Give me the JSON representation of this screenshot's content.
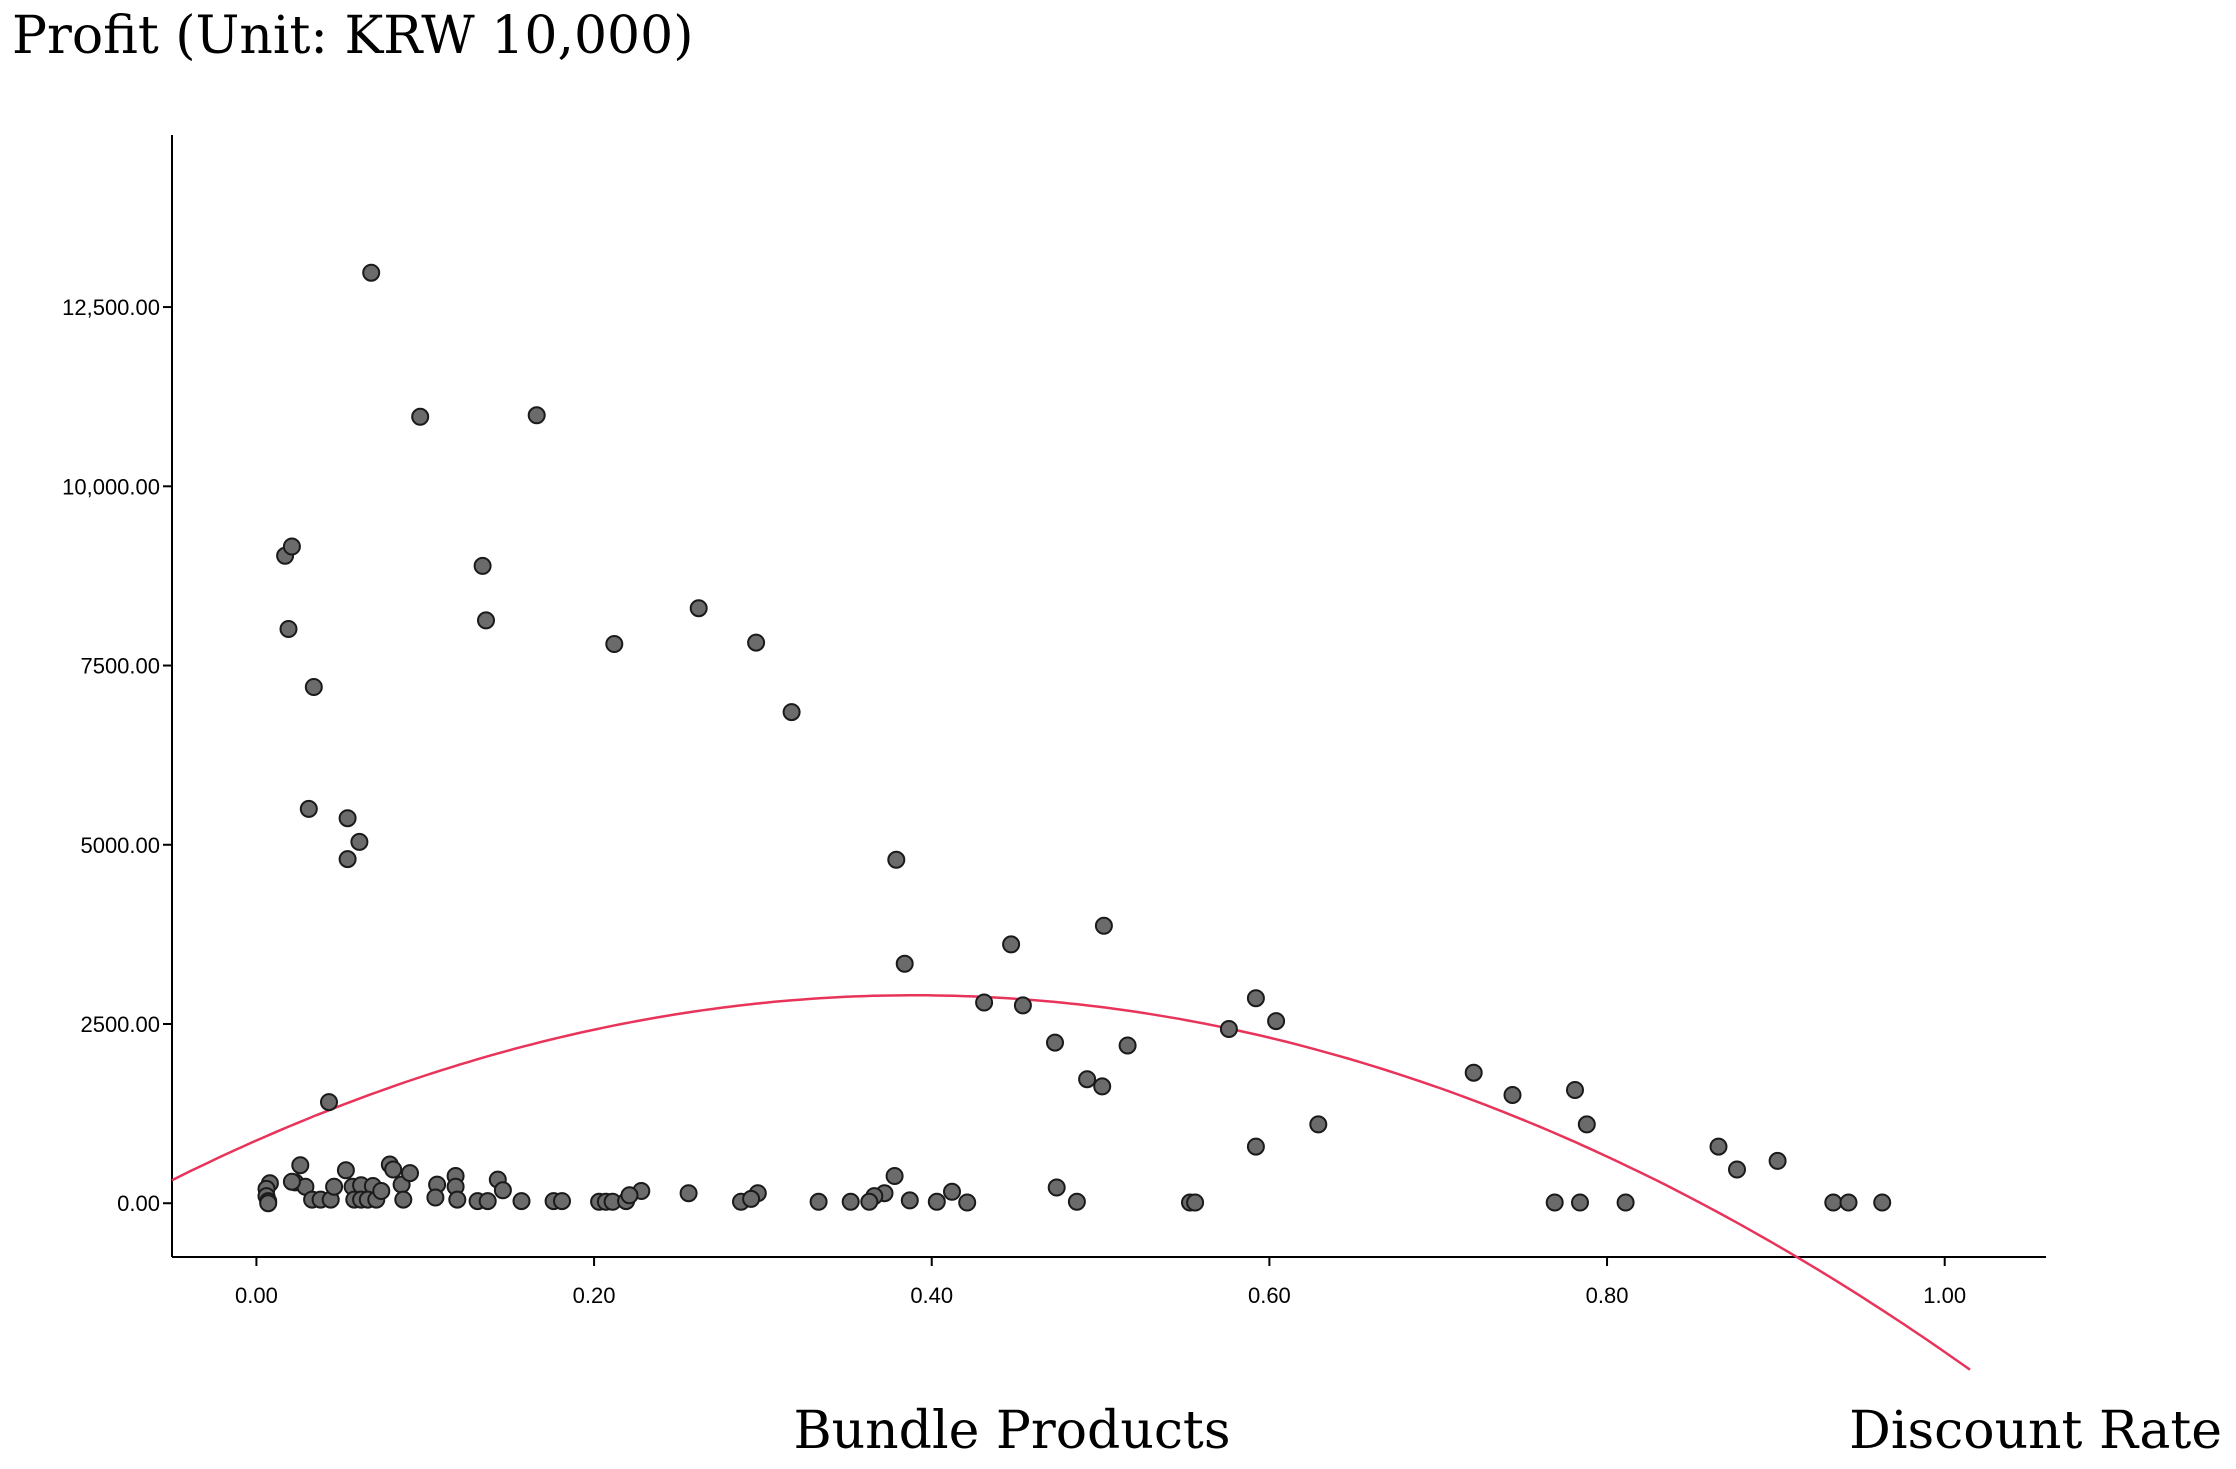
{
  "chart_data": {
    "type": "scatter",
    "title": "Profit (Unit: KRW 10,000)",
    "xlabel_left": "Bundle Products",
    "xlabel_right": "Discount Rate",
    "xlim": [
      -0.05,
      1.06
    ],
    "ylim": [
      -750,
      14900
    ],
    "x_ticks": [
      0.0,
      0.2,
      0.4,
      0.6,
      0.8,
      1.0
    ],
    "x_tick_labels": [
      "0.00",
      "0.20",
      "0.40",
      "0.60",
      "0.80",
      "1.00"
    ],
    "y_ticks": [
      0,
      2500,
      5000,
      7500,
      10000,
      12500
    ],
    "y_tick_labels": [
      "0.00",
      "2500.00",
      "5000.00",
      "7500.00",
      "10,000.00",
      "12,500.00"
    ],
    "grid": false,
    "legend": "none",
    "colors": {
      "points": "#6b6b6b",
      "point_stroke": "#1a1a1a",
      "fit_line": "#e8345a",
      "axis": "#000000"
    },
    "fit_curve": {
      "type": "quadratic",
      "a": -13350,
      "b": 10400,
      "c": 875,
      "x_start": -0.05,
      "x_end": 1.015
    },
    "points": [
      [
        0.068,
        12980
      ],
      [
        0.097,
        10970
      ],
      [
        0.166,
        10990
      ],
      [
        0.017,
        9030
      ],
      [
        0.021,
        9160
      ],
      [
        0.134,
        8890
      ],
      [
        0.019,
        8010
      ],
      [
        0.136,
        8130
      ],
      [
        0.212,
        7800
      ],
      [
        0.262,
        8300
      ],
      [
        0.296,
        7820
      ],
      [
        0.317,
        6850
      ],
      [
        0.034,
        7200
      ],
      [
        0.031,
        5500
      ],
      [
        0.054,
        5370
      ],
      [
        0.061,
        5040
      ],
      [
        0.054,
        4800
      ],
      [
        0.379,
        4790
      ],
      [
        0.384,
        3340
      ],
      [
        0.447,
        3610
      ],
      [
        0.502,
        3870
      ],
      [
        0.431,
        2800
      ],
      [
        0.454,
        2760
      ],
      [
        0.473,
        2240
      ],
      [
        0.516,
        2200
      ],
      [
        0.576,
        2430
      ],
      [
        0.592,
        2860
      ],
      [
        0.604,
        2540
      ],
      [
        0.492,
        1730
      ],
      [
        0.501,
        1630
      ],
      [
        0.043,
        1410
      ],
      [
        0.592,
        790
      ],
      [
        0.629,
        1100
      ],
      [
        0.721,
        1820
      ],
      [
        0.744,
        1510
      ],
      [
        0.781,
        1580
      ],
      [
        0.788,
        1100
      ],
      [
        0.866,
        790
      ],
      [
        0.877,
        470
      ],
      [
        0.901,
        590
      ],
      [
        0.023,
        290
      ],
      [
        0.026,
        530
      ],
      [
        0.029,
        230
      ],
      [
        0.021,
        300
      ],
      [
        0.053,
        460
      ],
      [
        0.057,
        230
      ],
      [
        0.062,
        250
      ],
      [
        0.069,
        240
      ],
      [
        0.079,
        540
      ],
      [
        0.081,
        470
      ],
      [
        0.086,
        260
      ],
      [
        0.091,
        420
      ],
      [
        0.107,
        260
      ],
      [
        0.118,
        380
      ],
      [
        0.118,
        230
      ],
      [
        0.143,
        330
      ],
      [
        0.146,
        180
      ],
      [
        0.228,
        170
      ],
      [
        0.256,
        140
      ],
      [
        0.297,
        140
      ],
      [
        0.378,
        380
      ],
      [
        0.372,
        140
      ],
      [
        0.366,
        100
      ],
      [
        0.412,
        160
      ],
      [
        0.474,
        220
      ],
      [
        0.008,
        280
      ],
      [
        0.006,
        200
      ],
      [
        0.006,
        100
      ],
      [
        0.007,
        30
      ],
      [
        0.007,
        0
      ],
      [
        0.033,
        50
      ],
      [
        0.038,
        50
      ],
      [
        0.044,
        50
      ],
      [
        0.046,
        230
      ],
      [
        0.058,
        50
      ],
      [
        0.062,
        50
      ],
      [
        0.066,
        50
      ],
      [
        0.071,
        50
      ],
      [
        0.074,
        170
      ],
      [
        0.087,
        50
      ],
      [
        0.106,
        80
      ],
      [
        0.119,
        50
      ],
      [
        0.131,
        30
      ],
      [
        0.137,
        30
      ],
      [
        0.157,
        30
      ],
      [
        0.176,
        30
      ],
      [
        0.181,
        30
      ],
      [
        0.203,
        20
      ],
      [
        0.207,
        20
      ],
      [
        0.211,
        20
      ],
      [
        0.219,
        30
      ],
      [
        0.221,
        110
      ],
      [
        0.287,
        20
      ],
      [
        0.293,
        60
      ],
      [
        0.333,
        20
      ],
      [
        0.352,
        20
      ],
      [
        0.363,
        20
      ],
      [
        0.387,
        40
      ],
      [
        0.403,
        20
      ],
      [
        0.421,
        10
      ],
      [
        0.486,
        20
      ],
      [
        0.553,
        10
      ],
      [
        0.556,
        10
      ],
      [
        0.769,
        10
      ],
      [
        0.784,
        10
      ],
      [
        0.811,
        10
      ],
      [
        0.934,
        10
      ],
      [
        0.943,
        10
      ],
      [
        0.963,
        10
      ]
    ]
  }
}
